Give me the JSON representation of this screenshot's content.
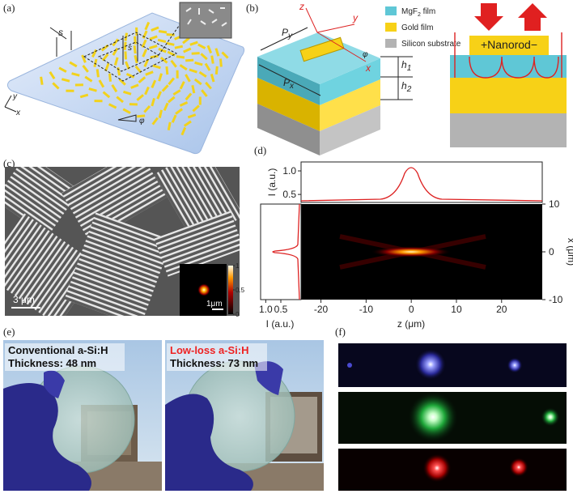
{
  "panel_a": {
    "label": "(a)",
    "s_outer": "s",
    "s_inner": "s",
    "axis_y": "y",
    "axis_x": "x",
    "angle": "φ"
  },
  "panel_b": {
    "label": "(b)",
    "axes": {
      "z": "z",
      "y": "y",
      "x": "x"
    },
    "p_y": {
      "main": "P",
      "sub": "y"
    },
    "p_x": {
      "main": "P",
      "sub": "x"
    },
    "h_1": {
      "main": "h",
      "sub": "1"
    },
    "h_2": {
      "main": "h",
      "sub": "2"
    },
    "angle": "φ",
    "legend": [
      {
        "main": "MgF",
        "sub": "2",
        "rest": " film",
        "color": "#5fc7d6"
      },
      {
        "main": "Gold film",
        "color": "#f7d117"
      },
      {
        "main": "Silicon substrate",
        "color": "#b3b3b3"
      }
    ],
    "nanorod": "+Nanorod−"
  },
  "panel_c": {
    "label": "(c)",
    "scale_bar": "3 μm",
    "inset_scale_bar": "1μm",
    "colorbar_ticks": [
      1,
      0.5,
      0
    ],
    "colorbar_lim": [
      0,
      1
    ]
  },
  "panel_d": {
    "label": "(d)",
    "top_ylabel": "I (a.u.)",
    "top_yticks": [
      {
        "value": 1,
        "label": "1.0"
      },
      0.5
    ],
    "top_ylim": [
      0.33,
      1.19
    ],
    "left_xlabel": "I (a.u.)",
    "left_xticks": [
      {
        "value": 1,
        "label": "1.0"
      },
      0.5
    ],
    "left_xlim": [
      1.17,
      -0.17
    ],
    "xlabel": "z (μm)",
    "xticks": [
      -20,
      -10,
      0,
      10,
      20
    ],
    "xlim": [
      -24.4,
      29
    ],
    "ylabel": "x (μm)",
    "yticks": [
      10,
      0,
      -10
    ],
    "ylim": [
      -10,
      10
    ]
  },
  "panel_e": {
    "label": "(e)",
    "left": {
      "title": "Conventional a-Si:H",
      "thickness": "Thickness: 48 nm"
    },
    "right": {
      "title": "Low-loss a-Si:H",
      "thickness": "Thickness: 73 nm"
    }
  },
  "panel_f": {
    "label": "(f)"
  }
}
